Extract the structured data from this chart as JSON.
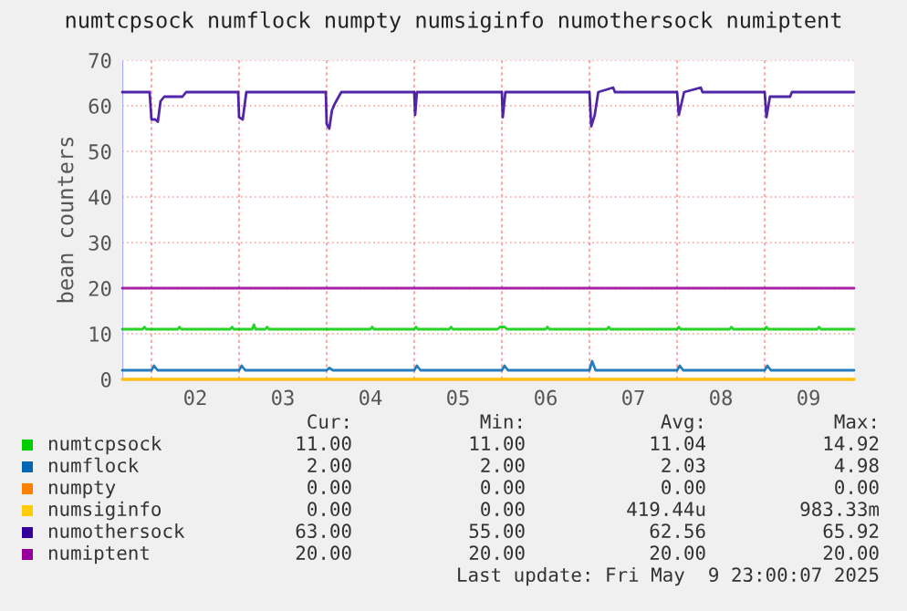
{
  "chart_data": {
    "type": "line",
    "title": "numtcpsock numflock numpty numsiginfo numothersock numiptent",
    "ylabel": "bean counters",
    "xlim": [
      1.667,
      10.02
    ],
    "xticks": [
      {
        "value": 2,
        "label": null
      },
      {
        "value": 2.5,
        "label": "02"
      },
      {
        "value": 3,
        "label": null
      },
      {
        "value": 3.5,
        "label": "03"
      },
      {
        "value": 4,
        "label": null
      },
      {
        "value": 4.5,
        "label": "04"
      },
      {
        "value": 5,
        "label": null
      },
      {
        "value": 5.5,
        "label": "05"
      },
      {
        "value": 6,
        "label": null
      },
      {
        "value": 6.5,
        "label": "06"
      },
      {
        "value": 7,
        "label": null
      },
      {
        "value": 7.5,
        "label": "07"
      },
      {
        "value": 8,
        "label": null
      },
      {
        "value": 8.5,
        "label": "08"
      },
      {
        "value": 9,
        "label": null
      },
      {
        "value": 9.5,
        "label": "09"
      }
    ],
    "ylim": [
      0,
      70
    ],
    "yticks": [
      0,
      10,
      20,
      30,
      40,
      50,
      60,
      70
    ],
    "grid": true,
    "legend": "bottom",
    "marker": "none",
    "line_style": "solid",
    "series": [
      {
        "name": "numtcpsock",
        "color": "#00cc00",
        "x": [
          1.667,
          1.9,
          1.92,
          1.94,
          2.3,
          2.32,
          2.34,
          2.9,
          2.92,
          2.94,
          3.15,
          3.17,
          3.19,
          3.3,
          3.32,
          3.34,
          4.5,
          4.52,
          4.54,
          5.0,
          5.02,
          5.04,
          5.4,
          5.42,
          5.44,
          5.95,
          5.98,
          6.0,
          6.03,
          6.06,
          6.5,
          6.52,
          6.54,
          7.2,
          7.22,
          7.24,
          8.0,
          8.02,
          8.04,
          8.6,
          8.62,
          8.64,
          9.0,
          9.02,
          9.04,
          9.6,
          9.62,
          9.64,
          10.02
        ],
        "values": [
          11,
          11,
          11.5,
          11,
          11,
          11.5,
          11,
          11,
          11.5,
          11,
          11,
          12,
          11,
          11,
          11.5,
          11,
          11,
          11.5,
          11,
          11,
          11.5,
          11,
          11,
          11.5,
          11,
          11,
          11.5,
          11.5,
          11.5,
          11,
          11,
          11.5,
          11,
          11,
          11.5,
          11,
          11,
          11.5,
          11,
          11,
          11.5,
          11,
          11,
          11.5,
          11,
          11,
          11.5,
          11,
          11
        ]
      },
      {
        "name": "numflock",
        "color": "#0066b3",
        "x": [
          1.667,
          2.0,
          2.03,
          2.07,
          2.99,
          3.0,
          3.03,
          3.07,
          3.99,
          4.0,
          4.03,
          4.07,
          4.99,
          5.0,
          5.03,
          5.07,
          5.99,
          6.0,
          6.03,
          6.07,
          6.99,
          7.0,
          7.03,
          7.07,
          7.99,
          8.0,
          8.03,
          8.07,
          8.99,
          9.0,
          9.03,
          9.07,
          10.02
        ],
        "values": [
          2,
          2,
          3,
          2,
          2,
          2,
          3,
          2,
          2,
          2,
          2.5,
          2,
          2,
          2,
          3,
          2,
          2,
          2,
          3,
          2,
          2,
          2,
          4,
          2,
          2,
          2,
          3,
          2,
          2,
          2,
          3,
          2,
          2
        ]
      },
      {
        "name": "numpty",
        "color": "#ff8000",
        "x": [
          1.667,
          10.02
        ],
        "values": [
          0,
          0
        ]
      },
      {
        "name": "numsiginfo",
        "color": "#ffcc00",
        "x": [
          1.667,
          10.02
        ],
        "values": [
          0,
          0
        ]
      },
      {
        "name": "numothersock",
        "color": "#330099",
        "x": [
          1.667,
          1.979,
          2.0,
          2.042,
          2.073,
          2.104,
          2.146,
          2.354,
          2.396,
          2.99,
          3.0,
          3.042,
          3.083,
          3.99,
          4.0,
          4.03,
          4.06,
          4.094,
          4.167,
          5.0,
          5.01,
          5.03,
          6.0,
          6.01,
          6.04,
          7.0,
          7.02,
          7.06,
          7.1,
          7.27,
          7.29,
          8.0,
          8.02,
          8.08,
          8.27,
          8.29,
          9.0,
          9.02,
          9.06,
          9.29,
          9.31,
          10.02
        ],
        "values": [
          63,
          63,
          57,
          57,
          56.5,
          61,
          62,
          62,
          63,
          63,
          57.5,
          57,
          63,
          63,
          56,
          55,
          59,
          60.5,
          63,
          63,
          58,
          63,
          63,
          57.5,
          63,
          63,
          55.5,
          58,
          63,
          64,
          63,
          63,
          58,
          63,
          64,
          63,
          63,
          57.5,
          62,
          62,
          63,
          63
        ]
      },
      {
        "name": "numiptent",
        "color": "#990099",
        "x": [
          1.667,
          10.02
        ],
        "values": [
          20,
          20
        ]
      }
    ],
    "annotations": [
      "Cur:",
      "Min:",
      "Avg:",
      "Max:",
      "11.00",
      "11.00",
      "11.04",
      "14.92",
      "2.00",
      "2.00",
      "2.03",
      "4.98",
      "0.00",
      "0.00",
      "0.00",
      "0.00",
      "0.00",
      "0.00",
      "419.44u",
      "983.33m",
      "63.00",
      "55.00",
      "62.56",
      "65.92",
      "20.00",
      "20.00",
      "20.00",
      "20.00",
      "Last update: Fri May  9 23:00:07 2025"
    ]
  }
}
